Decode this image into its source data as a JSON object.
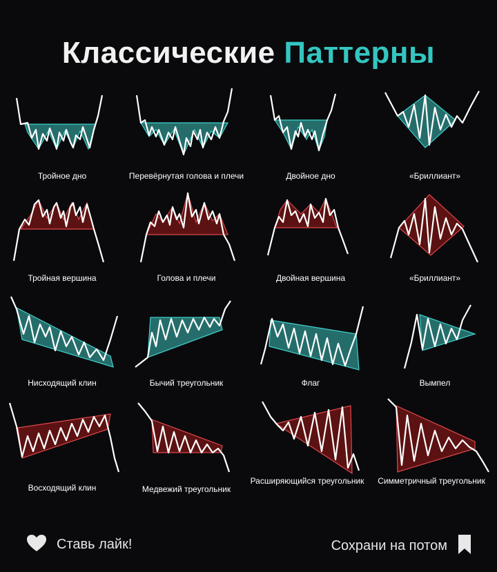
{
  "title": {
    "word1": "Классические",
    "word2": "Паттерны"
  },
  "colors": {
    "teal": "#2f8f8b",
    "teal_line": "#3fd3cc",
    "red": "#6b1414",
    "red_line": "#e0484c",
    "accent": "#34c6c0"
  },
  "patterns": [
    {
      "label": "Тройное дно",
      "color": "teal"
    },
    {
      "label": "Перевёрнутая голова и плечи",
      "color": "teal"
    },
    {
      "label": "Двойное дно",
      "color": "teal"
    },
    {
      "label": "«Бриллиант»",
      "color": "teal"
    },
    {
      "label": "Тройная вершина",
      "color": "red"
    },
    {
      "label": "Голова и плечи",
      "color": "red"
    },
    {
      "label": "Двойная вершина",
      "color": "red"
    },
    {
      "label": "«Бриллиант»",
      "color": "red"
    },
    {
      "label": "Нисходящий клин",
      "color": "teal"
    },
    {
      "label": "Бычий треугольник",
      "color": "teal"
    },
    {
      "label": "Флаг",
      "color": "teal"
    },
    {
      "label": "Вымпел",
      "color": "teal"
    },
    {
      "label": "Восходящий клин",
      "color": "red"
    },
    {
      "label": "Медвежий треугольник",
      "color": "red"
    },
    {
      "label": "Расширяющийся треугольник",
      "color": "red"
    },
    {
      "label": "Симметричный треугольник",
      "color": "red"
    }
  ],
  "footer": {
    "like_label": "Ставь лайк!",
    "like_icon": "heart-icon",
    "save_label": "Сохрани на потом",
    "save_icon": "bookmark-icon"
  }
}
